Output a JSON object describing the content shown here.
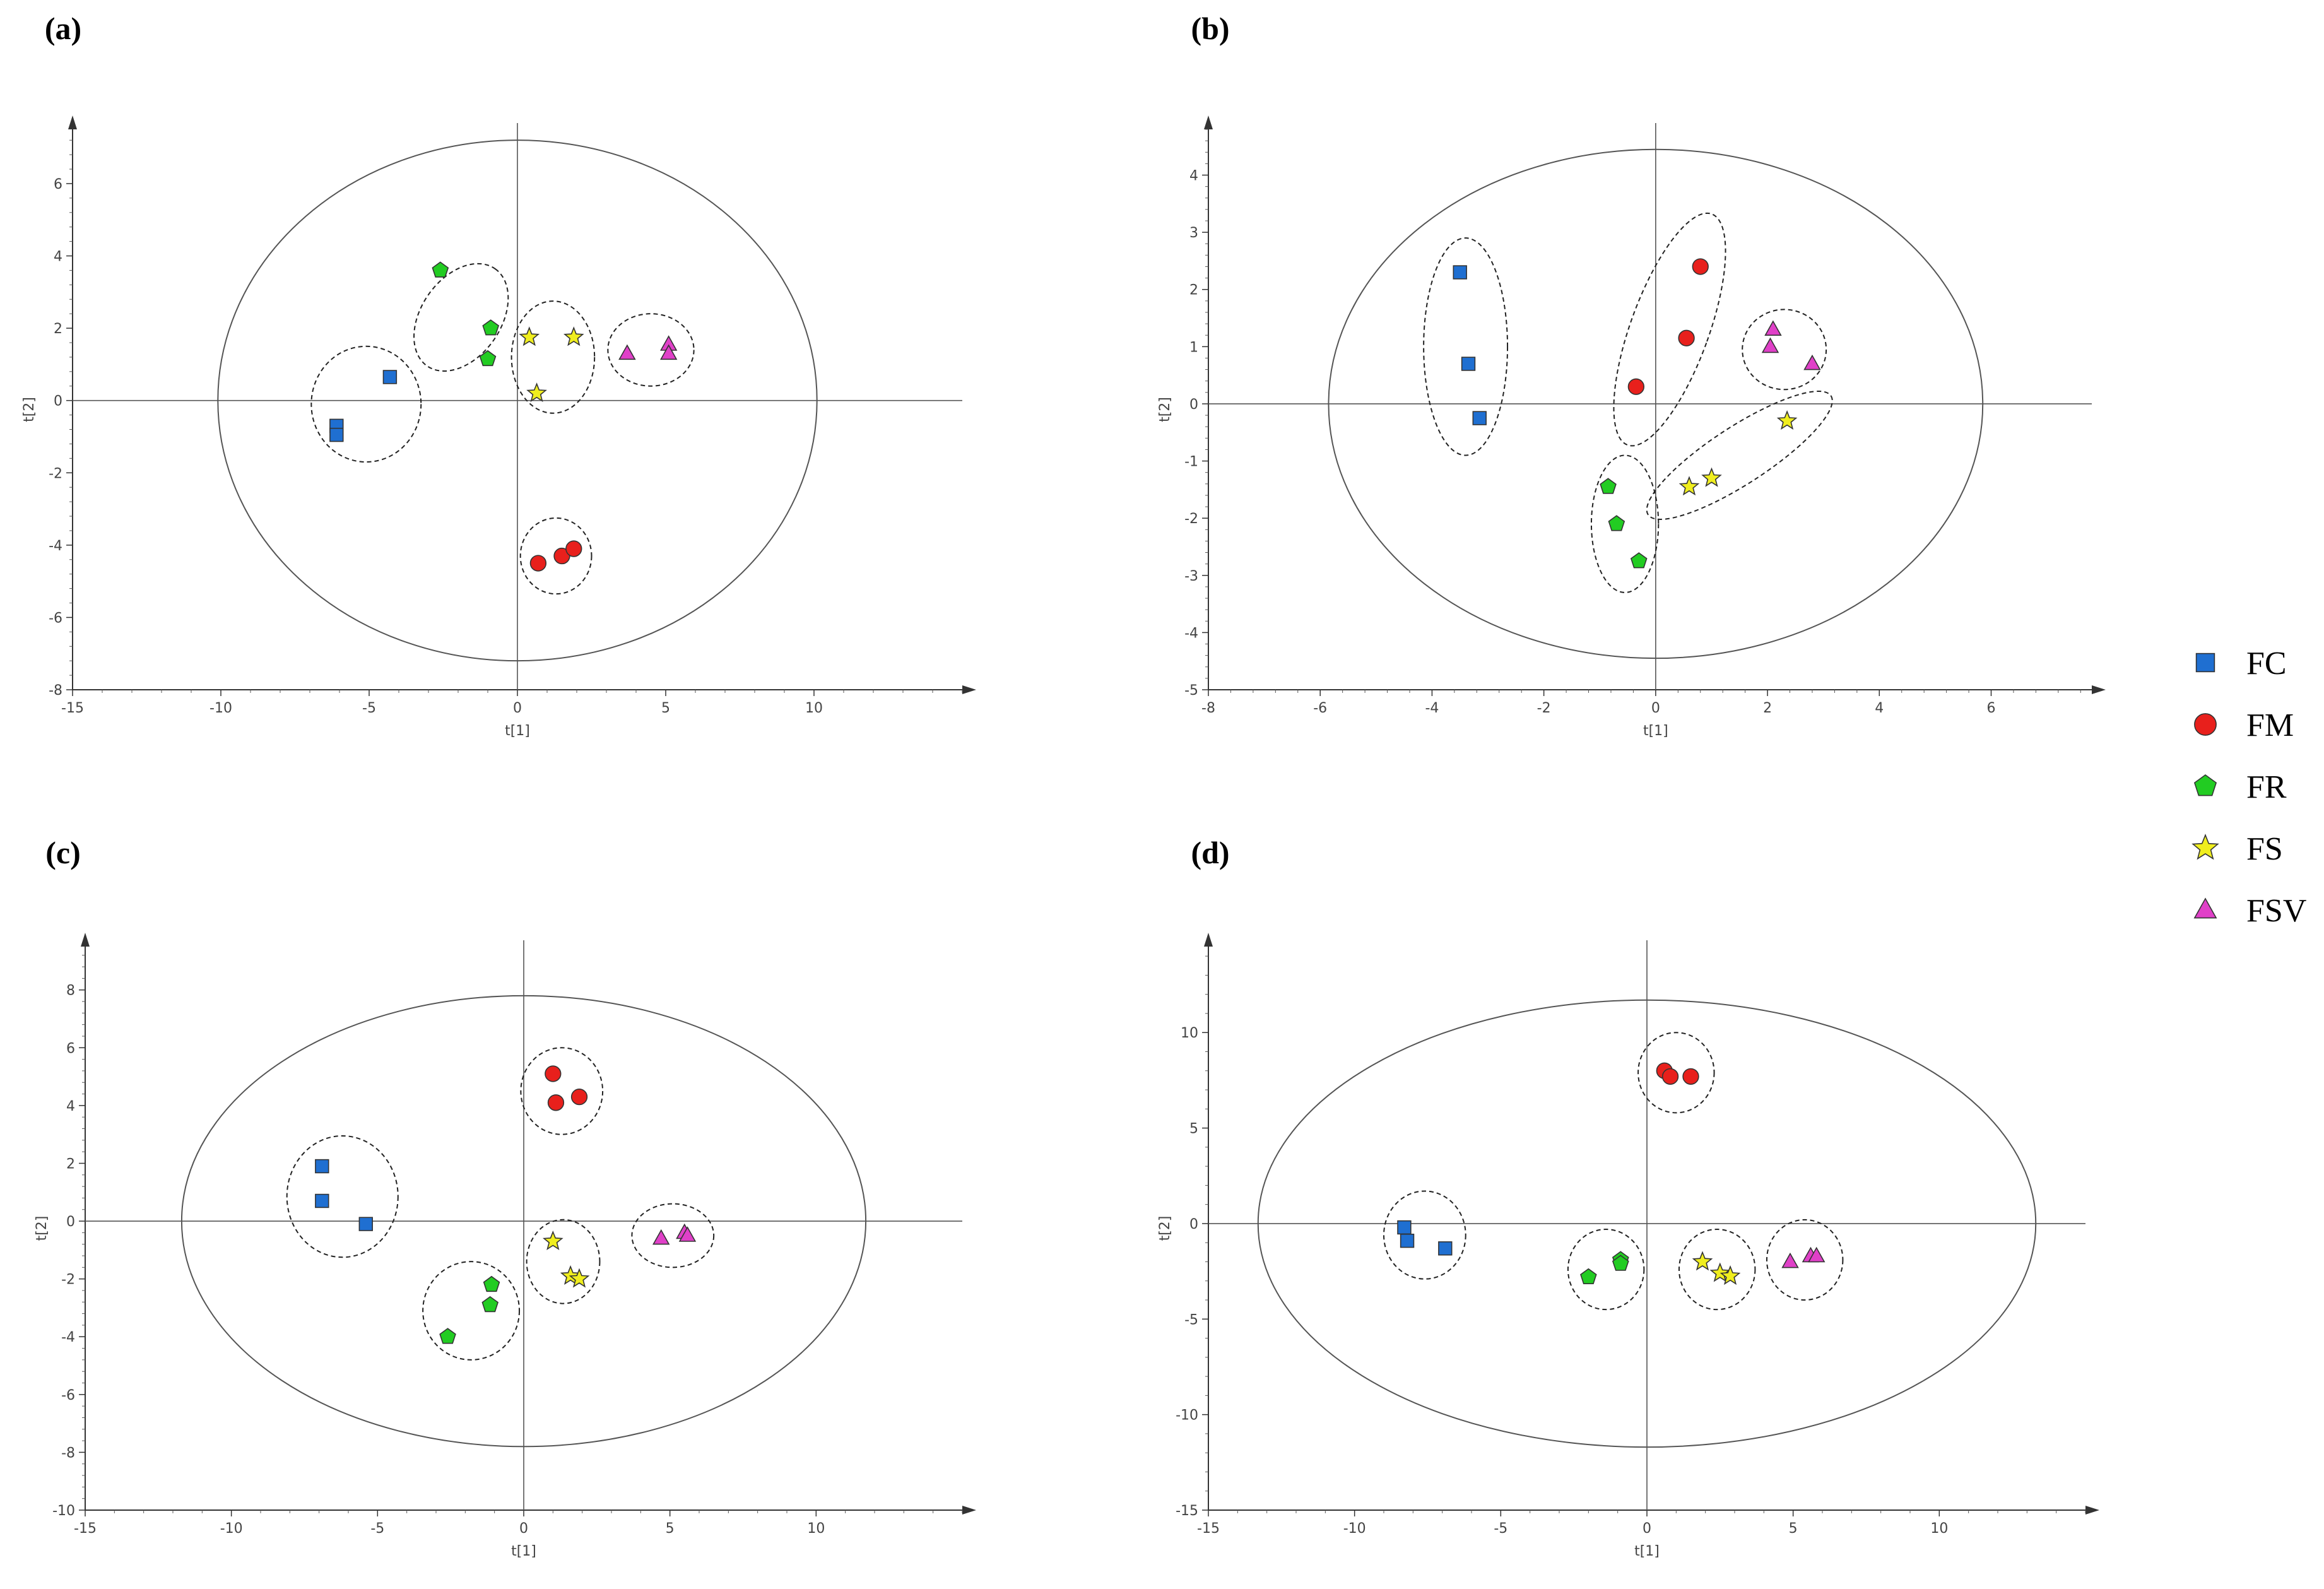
{
  "legend": [
    {
      "key": "FC",
      "label": "FC",
      "shape": "square",
      "color": "#1f6fd1"
    },
    {
      "key": "FM",
      "label": "FM",
      "shape": "circle",
      "color": "#e8201c"
    },
    {
      "key": "FR",
      "label": "FR",
      "shape": "pentagon",
      "color": "#22cc22"
    },
    {
      "key": "FS",
      "label": "FS",
      "shape": "star",
      "color": "#f0ee1e"
    },
    {
      "key": "FSV",
      "label": "FSV",
      "shape": "triangle",
      "color": "#e040c8"
    }
  ],
  "chart_data": [
    {
      "panel": "(a)",
      "type": "scatter",
      "xlabel": "t[1]",
      "ylabel": "t[2]",
      "xlim": [
        -15,
        15
      ],
      "ylim": [
        -8,
        7.5
      ],
      "xticks": [
        -15,
        -10,
        -5,
        0,
        5,
        10
      ],
      "yticks": [
        -8,
        -6,
        -4,
        -2,
        0,
        2,
        4,
        6
      ],
      "ellipse": {
        "rx": 10.1,
        "ry": 7.2
      },
      "series": [
        {
          "name": "FC",
          "points": [
            [
              -6.1,
              -0.7
            ],
            [
              -6.1,
              -0.95
            ],
            [
              -4.3,
              0.65
            ]
          ]
        },
        {
          "name": "FM",
          "points": [
            [
              0.7,
              -4.5
            ],
            [
              1.5,
              -4.3
            ],
            [
              1.9,
              -4.1
            ]
          ]
        },
        {
          "name": "FR",
          "points": [
            [
              -2.6,
              3.6
            ],
            [
              -0.9,
              2.0
            ],
            [
              -1.0,
              1.15
            ]
          ]
        },
        {
          "name": "FS",
          "points": [
            [
              0.4,
              1.75
            ],
            [
              1.9,
              1.75
            ],
            [
              0.65,
              0.2
            ]
          ]
        },
        {
          "name": "FSV",
          "points": [
            [
              3.7,
              1.3
            ],
            [
              5.1,
              1.55
            ],
            [
              5.1,
              1.3
            ]
          ]
        }
      ],
      "clusters": [
        {
          "cx": -5.1,
          "cy": -0.1,
          "rx": 1.85,
          "ry": 1.6,
          "angle": 0
        },
        {
          "cx": -1.9,
          "cy": 2.3,
          "rx": 2.0,
          "ry": 1.1,
          "angle": -55
        },
        {
          "cx": 1.2,
          "cy": 1.2,
          "rx": 1.4,
          "ry": 1.55,
          "angle": 0
        },
        {
          "cx": 4.5,
          "cy": 1.4,
          "rx": 1.45,
          "ry": 1.0,
          "angle": 0
        },
        {
          "cx": 1.3,
          "cy": -4.3,
          "rx": 1.2,
          "ry": 1.05,
          "angle": 0
        }
      ]
    },
    {
      "panel": "(b)",
      "type": "scatter",
      "xlabel": "t[1]",
      "ylabel": "t[2]",
      "xlim": [
        -8,
        7.8
      ],
      "ylim": [
        -5,
        4.8
      ],
      "xticks": [
        -8,
        -6,
        -4,
        -2,
        0,
        2,
        4,
        6
      ],
      "yticks": [
        -5,
        -4,
        -3,
        -2,
        -1,
        0,
        1,
        2,
        3,
        4
      ],
      "ellipse": {
        "rx": 5.85,
        "ry": 4.45
      },
      "series": [
        {
          "name": "FC",
          "points": [
            [
              -3.5,
              2.3
            ],
            [
              -3.35,
              0.7
            ],
            [
              -3.15,
              -0.25
            ]
          ]
        },
        {
          "name": "FM",
          "points": [
            [
              0.8,
              2.4
            ],
            [
              0.55,
              1.15
            ],
            [
              -0.35,
              0.3
            ]
          ]
        },
        {
          "name": "FR",
          "points": [
            [
              -0.85,
              -1.45
            ],
            [
              -0.7,
              -2.1
            ],
            [
              -0.3,
              -2.75
            ]
          ]
        },
        {
          "name": "FS",
          "points": [
            [
              2.35,
              -0.3
            ],
            [
              1.0,
              -1.3
            ],
            [
              0.6,
              -1.45
            ]
          ]
        },
        {
          "name": "FSV",
          "points": [
            [
              2.1,
              1.3
            ],
            [
              2.05,
              1.0
            ],
            [
              2.8,
              0.7
            ]
          ]
        }
      ],
      "clusters": [
        {
          "cx": -3.4,
          "cy": 1.0,
          "rx": 0.75,
          "ry": 1.9,
          "angle": 0
        },
        {
          "cx": 0.25,
          "cy": 1.3,
          "rx": 0.7,
          "ry": 2.15,
          "angle": 20
        },
        {
          "cx": -0.55,
          "cy": -2.1,
          "rx": 0.6,
          "ry": 1.2,
          "angle": 0
        },
        {
          "cx": 1.5,
          "cy": -0.9,
          "rx": 1.95,
          "ry": 0.5,
          "angle": -33
        },
        {
          "cx": 2.3,
          "cy": 0.95,
          "rx": 0.75,
          "ry": 0.7,
          "angle": 0
        }
      ]
    },
    {
      "panel": "(c)",
      "type": "scatter",
      "xlabel": "t[1]",
      "ylabel": "t[2]",
      "xlim": [
        -15,
        15
      ],
      "ylim": [
        -10,
        9.5
      ],
      "xticks": [
        -15,
        -10,
        -5,
        0,
        5,
        10
      ],
      "yticks": [
        -10,
        -8,
        -6,
        -4,
        -2,
        0,
        2,
        4,
        6,
        8
      ],
      "ellipse": {
        "rx": 11.7,
        "ry": 7.8
      },
      "series": [
        {
          "name": "FC",
          "points": [
            [
              -6.9,
              1.9
            ],
            [
              -6.9,
              0.7
            ],
            [
              -5.4,
              -0.1
            ]
          ]
        },
        {
          "name": "FM",
          "points": [
            [
              1.0,
              5.1
            ],
            [
              1.1,
              4.1
            ],
            [
              1.9,
              4.3
            ]
          ]
        },
        {
          "name": "FR",
          "points": [
            [
              -1.1,
              -2.2
            ],
            [
              -1.15,
              -2.9
            ],
            [
              -2.6,
              -4.0
            ]
          ]
        },
        {
          "name": "FS",
          "points": [
            [
              1.0,
              -0.7
            ],
            [
              1.6,
              -1.9
            ],
            [
              1.9,
              -2.0
            ]
          ]
        },
        {
          "name": "FSV",
          "points": [
            [
              4.7,
              -0.6
            ],
            [
              5.5,
              -0.4
            ],
            [
              5.6,
              -0.5
            ]
          ]
        }
      ],
      "clusters": [
        {
          "cx": -6.2,
          "cy": 0.85,
          "rx": 1.9,
          "ry": 2.1,
          "angle": 0
        },
        {
          "cx": 1.3,
          "cy": 4.5,
          "rx": 1.4,
          "ry": 1.5,
          "angle": 0
        },
        {
          "cx": -1.8,
          "cy": -3.1,
          "rx": 1.65,
          "ry": 1.7,
          "angle": 0
        },
        {
          "cx": 1.35,
          "cy": -1.4,
          "rx": 1.25,
          "ry": 1.45,
          "angle": 0
        },
        {
          "cx": 5.1,
          "cy": -0.5,
          "rx": 1.4,
          "ry": 1.1,
          "angle": 0
        }
      ]
    },
    {
      "panel": "(d)",
      "type": "scatter",
      "xlabel": "t[1]",
      "ylabel": "t[2]",
      "xlim": [
        -15,
        15
      ],
      "ylim": [
        -15,
        14.5
      ],
      "xticks": [
        -15,
        -10,
        -5,
        0,
        5,
        10
      ],
      "yticks": [
        -15,
        -10,
        -5,
        0,
        5,
        10
      ],
      "ellipse": {
        "rx": 13.3,
        "ry": 11.7
      },
      "series": [
        {
          "name": "FC",
          "points": [
            [
              -8.3,
              -0.2
            ],
            [
              -8.2,
              -0.9
            ],
            [
              -6.9,
              -1.3
            ]
          ]
        },
        {
          "name": "FM",
          "points": [
            [
              0.6,
              8.0
            ],
            [
              0.8,
              7.7
            ],
            [
              1.5,
              7.7
            ]
          ]
        },
        {
          "name": "FR",
          "points": [
            [
              -2.0,
              -2.8
            ],
            [
              -0.9,
              -1.9
            ],
            [
              -0.9,
              -2.1
            ]
          ]
        },
        {
          "name": "FS",
          "points": [
            [
              1.9,
              -2.0
            ],
            [
              2.5,
              -2.6
            ],
            [
              2.85,
              -2.75
            ]
          ]
        },
        {
          "name": "FSV",
          "points": [
            [
              4.9,
              -2.0
            ],
            [
              5.6,
              -1.7
            ],
            [
              5.8,
              -1.7
            ]
          ]
        }
      ],
      "clusters": [
        {
          "cx": -7.6,
          "cy": -0.6,
          "rx": 1.4,
          "ry": 2.3,
          "angle": 0
        },
        {
          "cx": 1.0,
          "cy": 7.9,
          "rx": 1.3,
          "ry": 2.1,
          "angle": 0
        },
        {
          "cx": -1.4,
          "cy": -2.4,
          "rx": 1.3,
          "ry": 2.1,
          "angle": 0
        },
        {
          "cx": 2.4,
          "cy": -2.4,
          "rx": 1.3,
          "ry": 2.1,
          "angle": 0
        },
        {
          "cx": 5.4,
          "cy": -1.9,
          "rx": 1.3,
          "ry": 2.1,
          "angle": 0
        }
      ]
    }
  ]
}
